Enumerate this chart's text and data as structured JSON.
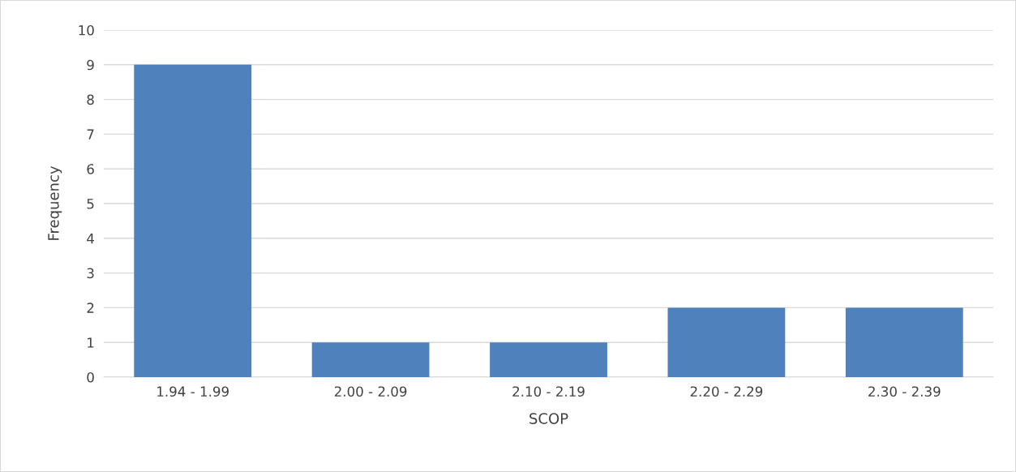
{
  "chart_data": {
    "type": "bar",
    "xlabel": "SCOP",
    "ylabel": "Frequency",
    "categories": [
      "1.94 - 1.99",
      "2.00 - 2.09",
      "2.10 - 2.19",
      "2.20 - 2.29",
      "2.30 - 2.39"
    ],
    "values": [
      9,
      1,
      1,
      2,
      2
    ],
    "color": "#4f81bd",
    "ylim": [
      0,
      10
    ],
    "yticks": [
      0,
      1,
      2,
      3,
      4,
      5,
      6,
      7,
      8,
      9,
      10
    ],
    "grid": "y"
  }
}
